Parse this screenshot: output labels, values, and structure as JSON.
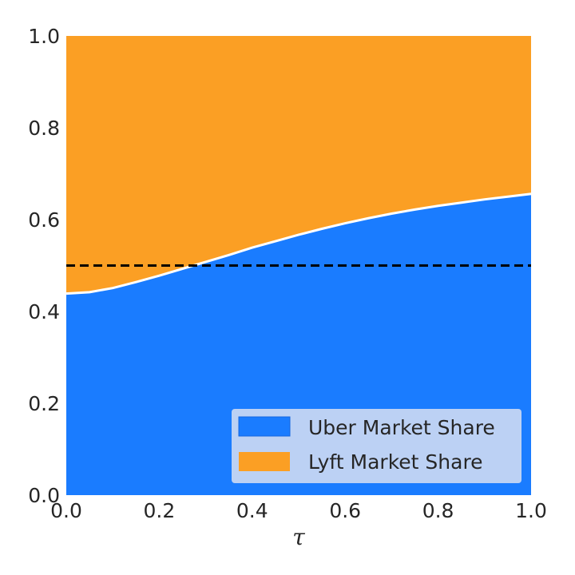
{
  "chart_data": {
    "type": "area",
    "xlabel": "τ",
    "ylabel": "",
    "title": "",
    "xlim": [
      0.0,
      1.0
    ],
    "ylim": [
      0.0,
      1.0
    ],
    "grid": false,
    "legend_position": "bottom-right",
    "x_ticks": [
      "0.0",
      "0.2",
      "0.4",
      "0.6",
      "0.8",
      "1.0"
    ],
    "y_ticks": [
      "0.0",
      "0.2",
      "0.4",
      "0.6",
      "0.8",
      "1.0"
    ],
    "x": [
      0.0,
      0.05,
      0.1,
      0.15,
      0.2,
      0.25,
      0.3,
      0.35,
      0.4,
      0.45,
      0.5,
      0.55,
      0.6,
      0.65,
      0.7,
      0.75,
      0.8,
      0.85,
      0.9,
      0.95,
      1.0
    ],
    "series": [
      {
        "name": "Uber Market Share",
        "color": "#1a7cff",
        "values": [
          0.439,
          0.442,
          0.451,
          0.464,
          0.478,
          0.493,
          0.508,
          0.523,
          0.539,
          0.553,
          0.567,
          0.58,
          0.592,
          0.603,
          0.613,
          0.622,
          0.63,
          0.637,
          0.644,
          0.65,
          0.656
        ]
      },
      {
        "name": "Lyft Market Share",
        "color": "#fb9f24",
        "values": [
          0.561,
          0.558,
          0.549,
          0.536,
          0.522,
          0.507,
          0.492,
          0.477,
          0.461,
          0.447,
          0.433,
          0.42,
          0.408,
          0.397,
          0.387,
          0.378,
          0.37,
          0.363,
          0.356,
          0.35,
          0.344
        ]
      }
    ],
    "reference_line": {
      "y": 0.5,
      "style": "dashed",
      "color": "#000000"
    },
    "boundary_color": "#ffffff",
    "legend_background": "#c5d6f3"
  }
}
